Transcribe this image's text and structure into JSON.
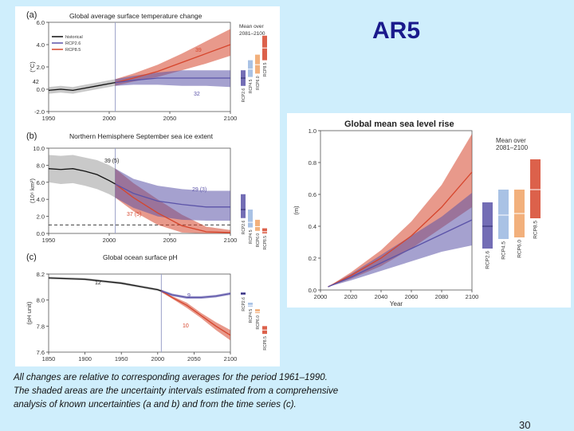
{
  "slide": {
    "title": "AR5",
    "caption_lines": [
      "All changes are relative to corresponding averages for the period 1961–1990.",
      "The shaded areas are the uncertainty intervals estimated from a comprehensive",
      "analysis of known uncertainties (a and b) and from the time series (c)."
    ],
    "page_number": "30"
  },
  "colors": {
    "historical": "#111111",
    "rcp26": "#5b53a8",
    "rcp45": "#9ab7e0",
    "rcp60": "#f0a265",
    "rcp85": "#d6452c",
    "background": "#cfeefc"
  },
  "chart_data": [
    {
      "id": "temp",
      "type": "line",
      "panel_label": "(a)",
      "title": "Global average surface temperature change",
      "xlabel": "",
      "ylabel": "(°C)",
      "xlim": [
        1950,
        2100
      ],
      "ylim": [
        -2,
        6
      ],
      "x_ticks": [
        1950,
        2000,
        2050,
        2100
      ],
      "y_ticks": [
        -2,
        0,
        2,
        4,
        6
      ],
      "y_tick_labels": [
        "-2.0",
        "0.0",
        "2.0",
        "4.0",
        "6.0"
      ],
      "legend": [
        "historical",
        "RCP2.6",
        "RCP8.5"
      ],
      "mean_box_title": "Mean over\n2081–2100",
      "mean_bars": [
        {
          "label": "RCP2.6",
          "key": "rcp26",
          "low": 0.3,
          "high": 1.7,
          "mean": 1.0
        },
        {
          "label": "RCP4.5",
          "key": "rcp45",
          "low": 1.1,
          "high": 2.6,
          "mean": 1.8
        },
        {
          "label": "RCP6.0",
          "key": "rcp60",
          "low": 1.4,
          "high": 3.1,
          "mean": 2.2
        },
        {
          "label": "RCP8.5",
          "key": "rcp85",
          "low": 2.6,
          "high": 4.8,
          "mean": 3.7
        }
      ],
      "annotations": [
        {
          "text": "42",
          "key": "historical"
        },
        {
          "text": "39",
          "key": "rcp85"
        },
        {
          "text": "32",
          "key": "rcp26"
        }
      ],
      "series": [
        {
          "name": "historical",
          "key": "historical",
          "x": [
            1950,
            1960,
            1970,
            1980,
            1990,
            2000,
            2005
          ],
          "y": [
            -0.1,
            0.0,
            -0.1,
            0.1,
            0.3,
            0.5,
            0.6
          ],
          "low": [
            -0.4,
            -0.3,
            -0.4,
            -0.2,
            0.0,
            0.2,
            0.3
          ],
          "high": [
            0.2,
            0.3,
            0.2,
            0.4,
            0.6,
            0.8,
            0.9
          ]
        },
        {
          "name": "RCP2.6",
          "key": "rcp26",
          "x": [
            2005,
            2020,
            2040,
            2060,
            2080,
            2100
          ],
          "y": [
            0.6,
            0.8,
            1.0,
            1.0,
            1.0,
            1.0
          ],
          "low": [
            0.3,
            0.4,
            0.4,
            0.3,
            0.3,
            0.2
          ],
          "high": [
            0.9,
            1.2,
            1.5,
            1.7,
            1.7,
            1.7
          ]
        },
        {
          "name": "RCP8.5",
          "key": "rcp85",
          "x": [
            2005,
            2020,
            2040,
            2060,
            2080,
            2100
          ],
          "y": [
            0.6,
            1.0,
            1.6,
            2.4,
            3.2,
            4.0
          ],
          "low": [
            0.3,
            0.7,
            1.1,
            1.7,
            2.3,
            3.0
          ],
          "high": [
            0.9,
            1.4,
            2.2,
            3.2,
            4.3,
            5.4
          ]
        }
      ]
    },
    {
      "id": "ice",
      "type": "line",
      "panel_label": "(b)",
      "title": "Northern Hemisphere September sea ice extent",
      "xlabel": "",
      "ylabel": "(10⁶ km²)",
      "xlim": [
        1950,
        2100
      ],
      "ylim": [
        0,
        10
      ],
      "x_ticks": [
        1950,
        2000,
        2050,
        2100
      ],
      "y_ticks": [
        0,
        2,
        4,
        6,
        8,
        10
      ],
      "y_tick_labels": [
        "0.0",
        "2.0",
        "4.0",
        "6.0",
        "8.0",
        "10.0"
      ],
      "dashed_threshold": 1.0,
      "mean_bars": [
        {
          "label": "RCP2.6",
          "key": "rcp26",
          "low": 1.8,
          "high": 4.6,
          "mean": 2.8
        },
        {
          "label": "RCP4.5",
          "key": "rcp45",
          "low": 0.7,
          "high": 2.8,
          "mean": 1.3
        },
        {
          "label": "RCP6.0",
          "key": "rcp60",
          "low": 0.3,
          "high": 1.6,
          "mean": 0.8
        },
        {
          "label": "RCP8.5",
          "key": "rcp85",
          "low": 0.0,
          "high": 0.6,
          "mean": 0.2
        }
      ],
      "annotations": [
        {
          "text": "39 (5)",
          "key": "historical"
        },
        {
          "text": "29 (3)",
          "key": "rcp26"
        },
        {
          "text": "37 (5)",
          "key": "rcp85"
        }
      ],
      "series": [
        {
          "name": "historical",
          "key": "historical",
          "x": [
            1950,
            1960,
            1970,
            1980,
            1990,
            2000,
            2005
          ],
          "y": [
            7.6,
            7.5,
            7.6,
            7.3,
            6.9,
            6.2,
            5.8
          ],
          "low": [
            6.0,
            5.8,
            5.9,
            5.6,
            5.2,
            4.6,
            4.2
          ],
          "high": [
            9.2,
            9.1,
            9.2,
            8.9,
            8.6,
            8.0,
            7.6
          ]
        },
        {
          "name": "RCP2.6",
          "key": "rcp26",
          "x": [
            2005,
            2020,
            2040,
            2060,
            2080,
            2100
          ],
          "y": [
            5.8,
            4.7,
            3.8,
            3.4,
            3.1,
            3.1
          ],
          "low": [
            4.2,
            3.0,
            2.0,
            1.6,
            1.5,
            1.5
          ],
          "high": [
            7.6,
            6.4,
            5.6,
            5.2,
            5.0,
            5.0
          ]
        },
        {
          "name": "RCP8.5",
          "key": "rcp85",
          "x": [
            2005,
            2020,
            2040,
            2060,
            2080,
            2100
          ],
          "y": [
            5.8,
            4.2,
            2.4,
            0.9,
            0.2,
            0.1
          ],
          "low": [
            4.2,
            2.6,
            1.0,
            0.1,
            0.0,
            0.0
          ],
          "high": [
            7.6,
            5.9,
            4.0,
            2.2,
            0.8,
            0.4
          ]
        }
      ]
    },
    {
      "id": "ph",
      "type": "line",
      "panel_label": "(c)",
      "title": "Global ocean surface pH",
      "xlabel": "",
      "ylabel": "(pH unit)",
      "xlim": [
        1850,
        2100
      ],
      "ylim": [
        7.6,
        8.2
      ],
      "x_ticks": [
        1850,
        1900,
        1950,
        2000,
        2050,
        2100
      ],
      "y_ticks": [
        7.6,
        7.8,
        8.0,
        8.2
      ],
      "y_tick_labels": [
        "7.6",
        "7.8",
        "8.0",
        "8.2"
      ],
      "mean_bars": [
        {
          "label": "RCP2.6",
          "key": "rcp26",
          "low": 8.04,
          "high": 8.06,
          "mean": 8.05
        },
        {
          "label": "RCP4.5",
          "key": "rcp45",
          "low": 7.95,
          "high": 7.98,
          "mean": 7.96
        },
        {
          "label": "RCP6.0",
          "key": "rcp60",
          "low": 7.9,
          "high": 7.93,
          "mean": 7.91
        },
        {
          "label": "RCP8.5",
          "key": "rcp85",
          "low": 7.74,
          "high": 7.8,
          "mean": 7.77
        }
      ],
      "annotations": [
        {
          "text": "12",
          "key": "historical"
        },
        {
          "text": "9",
          "key": "rcp26"
        },
        {
          "text": "10",
          "key": "rcp85"
        }
      ],
      "series": [
        {
          "name": "historical",
          "key": "historical",
          "x": [
            1850,
            1900,
            1950,
            1980,
            2000,
            2005
          ],
          "y": [
            8.17,
            8.16,
            8.13,
            8.1,
            8.08,
            8.07
          ],
          "low": [
            8.16,
            8.15,
            8.12,
            8.09,
            8.07,
            8.06
          ],
          "high": [
            8.18,
            8.17,
            8.14,
            8.11,
            8.09,
            8.08
          ]
        },
        {
          "name": "RCP2.6",
          "key": "rcp26",
          "x": [
            2005,
            2020,
            2040,
            2060,
            2080,
            2100
          ],
          "y": [
            8.07,
            8.04,
            8.02,
            8.02,
            8.03,
            8.05
          ],
          "low": [
            8.06,
            8.03,
            8.01,
            8.01,
            8.02,
            8.04
          ],
          "high": [
            8.08,
            8.05,
            8.03,
            8.03,
            8.04,
            8.06
          ]
        },
        {
          "name": "RCP8.5",
          "key": "rcp85",
          "x": [
            2005,
            2020,
            2040,
            2060,
            2080,
            2100
          ],
          "y": [
            8.07,
            8.02,
            7.96,
            7.88,
            7.8,
            7.73
          ],
          "low": [
            8.06,
            8.01,
            7.94,
            7.86,
            7.77,
            7.69
          ],
          "high": [
            8.08,
            8.03,
            7.98,
            7.9,
            7.83,
            7.77
          ]
        }
      ]
    },
    {
      "id": "sea",
      "type": "line",
      "title": "Global mean sea level rise",
      "xlabel": "Year",
      "ylabel": "(m)",
      "xlim": [
        2000,
        2100
      ],
      "ylim": [
        0,
        1.0
      ],
      "x_ticks": [
        2000,
        2020,
        2040,
        2060,
        2080,
        2100
      ],
      "y_ticks": [
        0,
        0.2,
        0.4,
        0.6,
        0.8,
        1.0
      ],
      "y_tick_labels": [
        "0.0",
        "0.2",
        "0.4",
        "0.6",
        "0.8",
        "1.0"
      ],
      "mean_box_title": "Mean over\n2081–2100",
      "mean_bars": [
        {
          "label": "RCP2.6",
          "key": "rcp26",
          "low": 0.26,
          "high": 0.55,
          "mean": 0.4
        },
        {
          "label": "RCP4.5",
          "key": "rcp45",
          "low": 0.32,
          "high": 0.63,
          "mean": 0.47
        },
        {
          "label": "RCP6.0",
          "key": "rcp60",
          "low": 0.33,
          "high": 0.63,
          "mean": 0.48
        },
        {
          "label": "RCP8.5",
          "key": "rcp85",
          "low": 0.45,
          "high": 0.82,
          "mean": 0.63
        }
      ],
      "series": [
        {
          "name": "RCP2.6",
          "key": "rcp26",
          "x": [
            2005,
            2020,
            2040,
            2060,
            2080,
            2100
          ],
          "y": [
            0.02,
            0.08,
            0.17,
            0.26,
            0.35,
            0.44
          ],
          "low": [
            0.02,
            0.06,
            0.12,
            0.18,
            0.24,
            0.28
          ],
          "high": [
            0.02,
            0.1,
            0.22,
            0.34,
            0.46,
            0.61
          ]
        },
        {
          "name": "RCP8.5",
          "key": "rcp85",
          "x": [
            2005,
            2020,
            2040,
            2060,
            2080,
            2100
          ],
          "y": [
            0.02,
            0.09,
            0.2,
            0.34,
            0.52,
            0.74
          ],
          "low": [
            0.02,
            0.07,
            0.15,
            0.26,
            0.39,
            0.52
          ],
          "high": [
            0.02,
            0.11,
            0.25,
            0.43,
            0.66,
            0.98
          ]
        }
      ]
    }
  ]
}
